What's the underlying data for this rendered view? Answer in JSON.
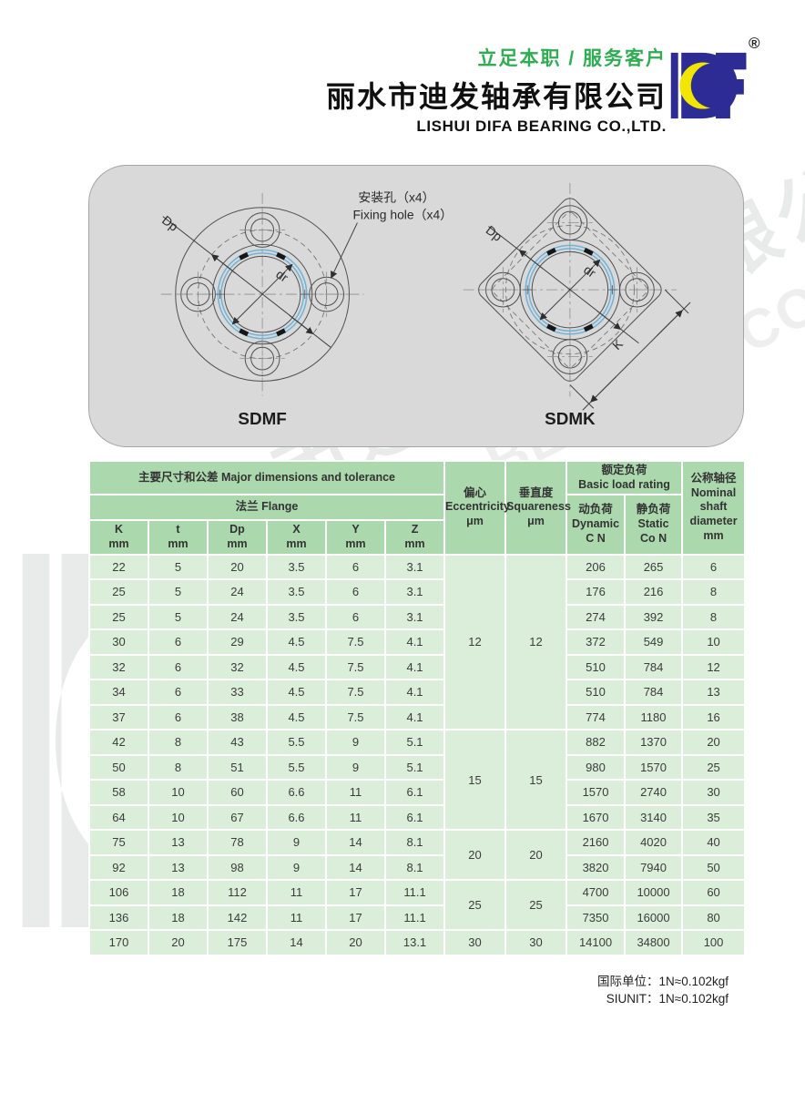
{
  "header": {
    "slogan": "立足本职 / 服务客户",
    "company_cn": "丽水市迪发轴承有限公司",
    "company_en": "LISHUI DIFA BEARING CO.,LTD.",
    "registered_mark": "®",
    "colors": {
      "slogan_green": "#2fad52",
      "logo_navy": "#2c2c94",
      "logo_yellow": "#f2e500"
    }
  },
  "drawings": {
    "fixing_hole_label_cn": "安装孔（x4）",
    "fixing_hole_label_en": "Fixing hole（x4）",
    "sdmf_label": "SDMF",
    "sdmk_label": "SDMK",
    "dim_dp": "Dp",
    "dim_dr": "dr",
    "dim_k": "K"
  },
  "table": {
    "header": {
      "major_dims": "主要尺寸和公差 Major dimensions and tolerance",
      "flange": "法兰 Flange",
      "dim_cols": [
        "K\nmm",
        "t\nmm",
        "Dp\nmm",
        "X\nmm",
        "Y\nmm",
        "Z\nmm"
      ],
      "eccentricity": "偏心\nEccentricity\nμm",
      "squareness": "垂直度\nSquareness\nμm",
      "basic_load": "额定负荷\nBasic load rating",
      "dynamic": "动负荷\nDynamic\nC N",
      "static": "静负荷\nStatic\nCo N",
      "nominal": "公称轴径\nNominal\nshaft\ndiameter\nmm"
    },
    "rows": [
      [
        "22",
        "5",
        "20",
        "3.5",
        "6",
        "3.1",
        "206",
        "265",
        "6"
      ],
      [
        "25",
        "5",
        "24",
        "3.5",
        "6",
        "3.1",
        "176",
        "216",
        "8"
      ],
      [
        "25",
        "5",
        "24",
        "3.5",
        "6",
        "3.1",
        "274",
        "392",
        "8"
      ],
      [
        "30",
        "6",
        "29",
        "4.5",
        "7.5",
        "4.1",
        "372",
        "549",
        "10"
      ],
      [
        "32",
        "6",
        "32",
        "4.5",
        "7.5",
        "4.1",
        "510",
        "784",
        "12"
      ],
      [
        "34",
        "6",
        "33",
        "4.5",
        "7.5",
        "4.1",
        "510",
        "784",
        "13"
      ],
      [
        "37",
        "6",
        "38",
        "4.5",
        "7.5",
        "4.1",
        "774",
        "1180",
        "16"
      ],
      [
        "42",
        "8",
        "43",
        "5.5",
        "9",
        "5.1",
        "882",
        "1370",
        "20"
      ],
      [
        "50",
        "8",
        "51",
        "5.5",
        "9",
        "5.1",
        "980",
        "1570",
        "25"
      ],
      [
        "58",
        "10",
        "60",
        "6.6",
        "11",
        "6.1",
        "1570",
        "2740",
        "30"
      ],
      [
        "64",
        "10",
        "67",
        "6.6",
        "11",
        "6.1",
        "1670",
        "3140",
        "35"
      ],
      [
        "75",
        "13",
        "78",
        "9",
        "14",
        "8.1",
        "2160",
        "4020",
        "40"
      ],
      [
        "92",
        "13",
        "98",
        "9",
        "14",
        "8.1",
        "3820",
        "7940",
        "50"
      ],
      [
        "106",
        "18",
        "112",
        "11",
        "17",
        "11.1",
        "4700",
        "10000",
        "60"
      ],
      [
        "136",
        "18",
        "142",
        "11",
        "17",
        "11.1",
        "7350",
        "16000",
        "80"
      ],
      [
        "170",
        "20",
        "175",
        "14",
        "20",
        "13.1",
        "14100",
        "34800",
        "100"
      ]
    ],
    "tolerance_groups": [
      {
        "row_span": 7,
        "eccentricity": "12",
        "squareness": "12"
      },
      {
        "row_span": 4,
        "eccentricity": "15",
        "squareness": "15"
      },
      {
        "row_span": 2,
        "eccentricity": "20",
        "squareness": "20"
      },
      {
        "row_span": 2,
        "eccentricity": "25",
        "squareness": "25"
      },
      {
        "row_span": 1,
        "eccentricity": "30",
        "squareness": "30"
      }
    ],
    "colors": {
      "header_bg": "#abd9ad",
      "row_bg": "#daeeda",
      "grid": "#ffffff"
    }
  },
  "footer": {
    "note_cn": "国际单位：1N≈0.102kgf",
    "note_en": "SIUNIT：1N≈0.102kgf"
  },
  "watermark": {
    "line_cn": "丽水市迪发轴承有限公司",
    "line_en": "LISHUI DIFA BEARING CO.,LTD.",
    "registered_mark": "®"
  }
}
